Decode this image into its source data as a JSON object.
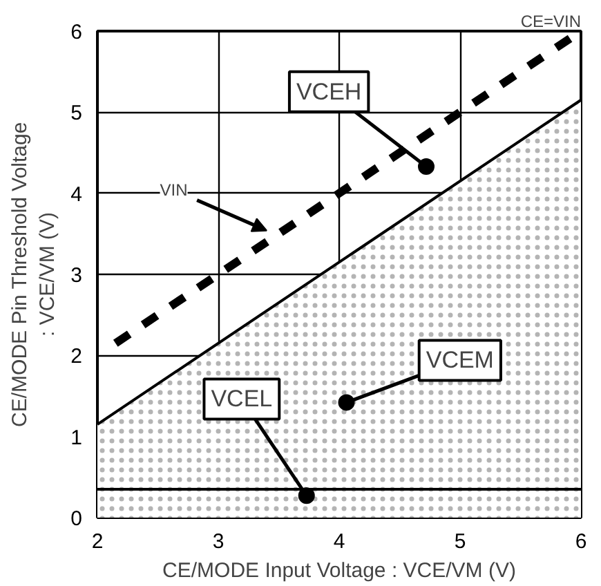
{
  "chart_data": {
    "type": "line",
    "xlabel": "CE/MODE Input Voltage : VCE/VM (V)",
    "ylabel": "CE/MODE Pin Threshold Voltage\n: VCE/VM (V)",
    "xlim": [
      2,
      6
    ],
    "ylim": [
      0,
      6
    ],
    "xticks": [
      2,
      3,
      4,
      5,
      6
    ],
    "yticks": [
      0,
      1,
      2,
      3,
      4,
      5,
      6
    ],
    "grid": true,
    "series": [
      {
        "type": "area",
        "x": [
          2,
          6
        ],
        "values": [
          1.15,
          5.15
        ],
        "color": "#000000"
      },
      {
        "x": [
          2.15,
          6
        ],
        "values": [
          2.15,
          6
        ],
        "color": "#000000",
        "line_style": "dashed"
      },
      {
        "x": [
          2,
          6
        ],
        "values": [
          0.35,
          0.35
        ],
        "color": "#000000",
        "line_style": "solid"
      }
    ],
    "annotations": [
      "CE=VIN",
      {
        "text": "VCEH",
        "x": 4.72,
        "y": 4.33
      },
      {
        "text": "VIN",
        "x": 3.4,
        "y": 3.54
      },
      {
        "text": "VCEM",
        "x": 4.06,
        "y": 1.42
      },
      {
        "text": "VCEL",
        "x": 3.73,
        "y": 0.27
      }
    ]
  }
}
